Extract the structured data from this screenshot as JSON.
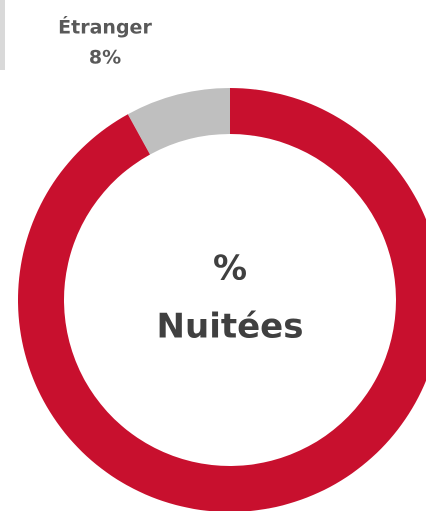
{
  "chart_data": {
    "type": "donut",
    "categories": [
      null,
      "Étranger"
    ],
    "values": [
      92,
      8
    ],
    "value_labels": [
      null,
      "8%"
    ],
    "colors": [
      "#c8102e",
      "#bfbfbf"
    ],
    "annotations": [
      "%",
      "Nuitées"
    ]
  }
}
